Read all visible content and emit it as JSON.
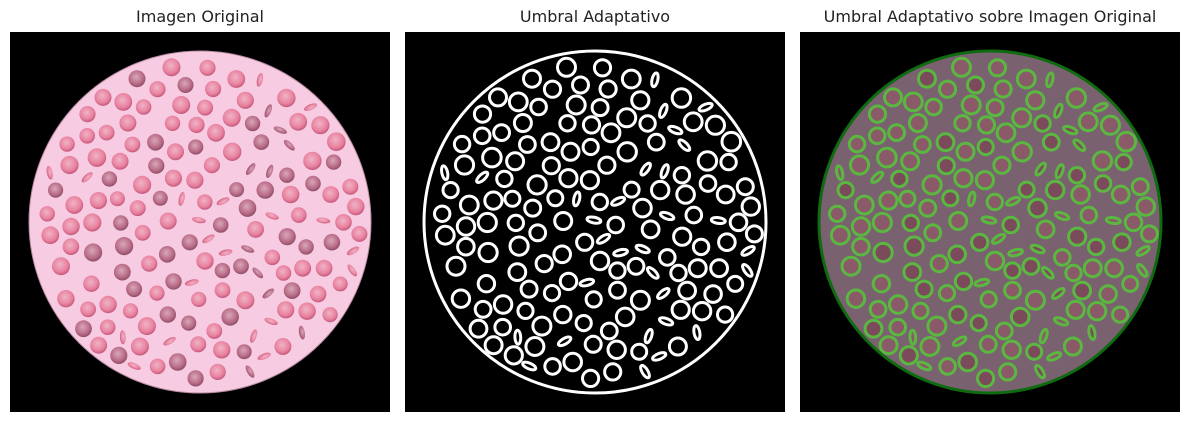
{
  "panels": [
    {
      "title": "Imagen Original"
    },
    {
      "title": "Umbral Adaptativo"
    },
    {
      "title": "Umbral Adaptativo sobre Imagen Original"
    }
  ],
  "colors": {
    "background": "#000000",
    "dish_pink": "#f7cce2",
    "cell_pink": "#e8819f",
    "cell_dark": "#b86a86",
    "threshold_white": "#ffffff",
    "overlay_dish": "#7a6170",
    "overlay_green": "#5ab840",
    "overlay_rim": "#0f6b0f"
  }
}
